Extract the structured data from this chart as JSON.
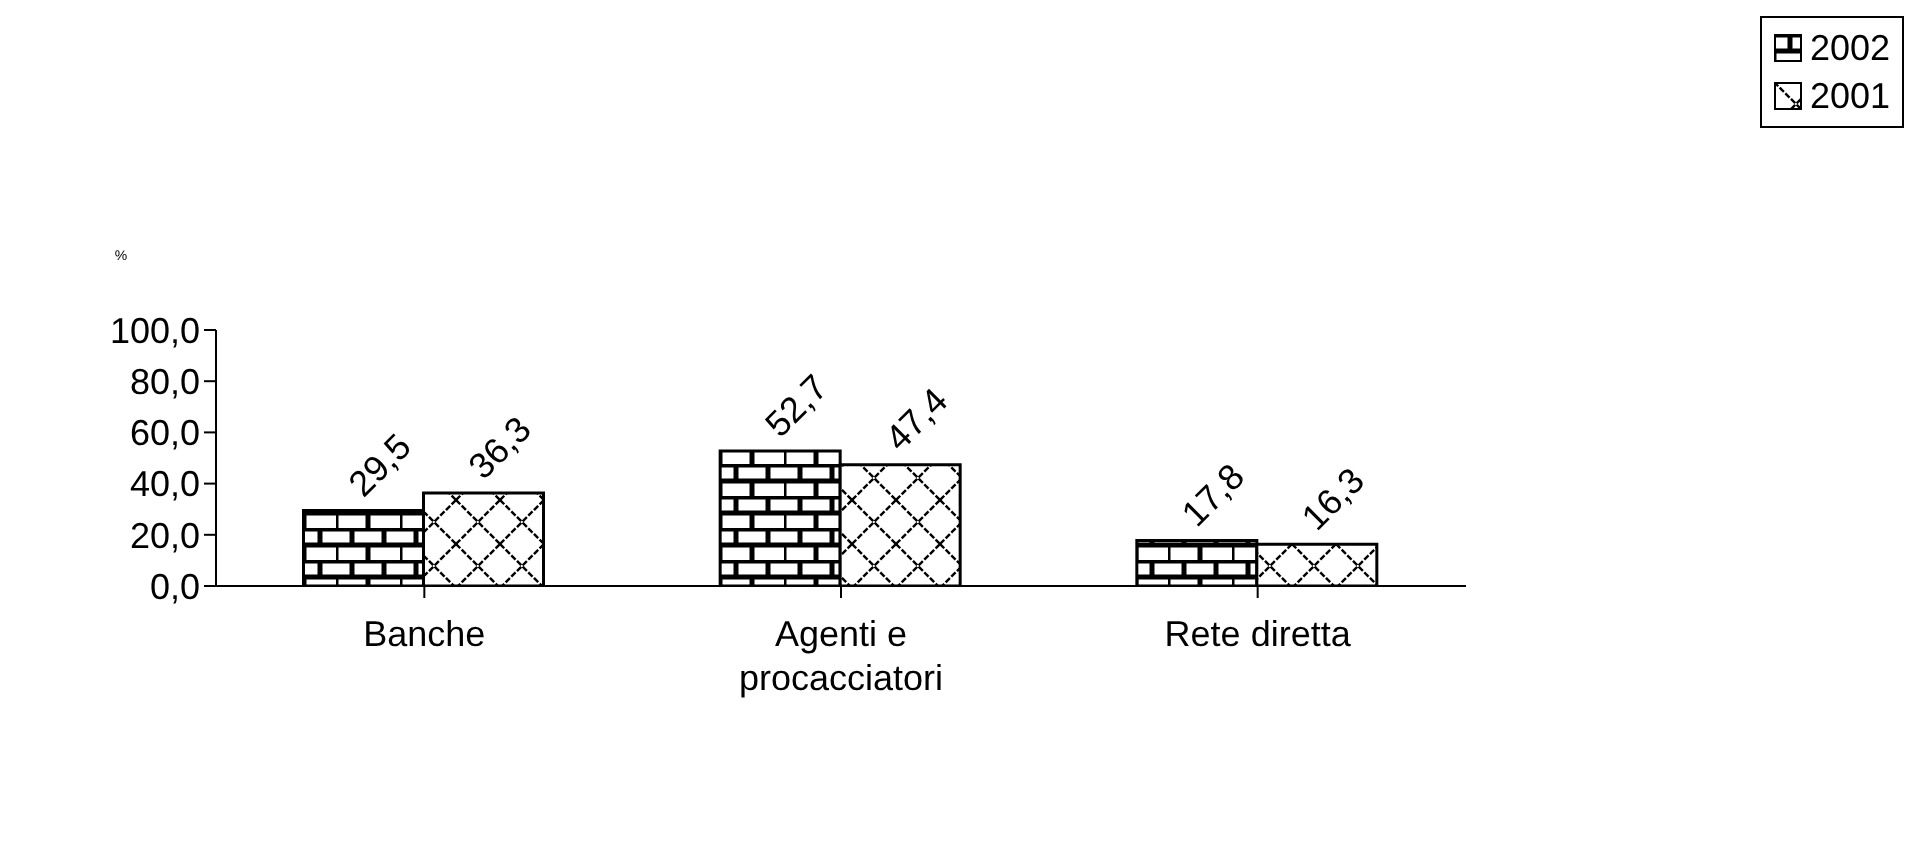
{
  "chart_data": {
    "type": "bar",
    "ylabel": "%",
    "categories": [
      "Banche",
      "Agenti e procacciatori",
      "Rete diretta"
    ],
    "series": [
      {
        "name": "2002",
        "color": "#000000",
        "values": [
          29.5,
          52.7,
          17.8
        ],
        "value_labels": [
          "29,5",
          "52,7",
          "17,8"
        ]
      },
      {
        "name": "2001",
        "color": "#000000",
        "values": [
          36.3,
          47.4,
          16.3
        ],
        "value_labels": [
          "36,3",
          "47,4",
          "16,3"
        ]
      }
    ],
    "ylim": [
      0,
      100
    ],
    "yticks": [
      {
        "value": 0,
        "label": "0,0"
      },
      {
        "value": 20,
        "label": "20,0"
      },
      {
        "value": 40,
        "label": "40,0"
      },
      {
        "value": 60,
        "label": "60,0"
      },
      {
        "value": 80,
        "label": "80,0"
      },
      {
        "value": 100,
        "label": "100,0"
      }
    ],
    "grid": false,
    "legend": "top right"
  }
}
